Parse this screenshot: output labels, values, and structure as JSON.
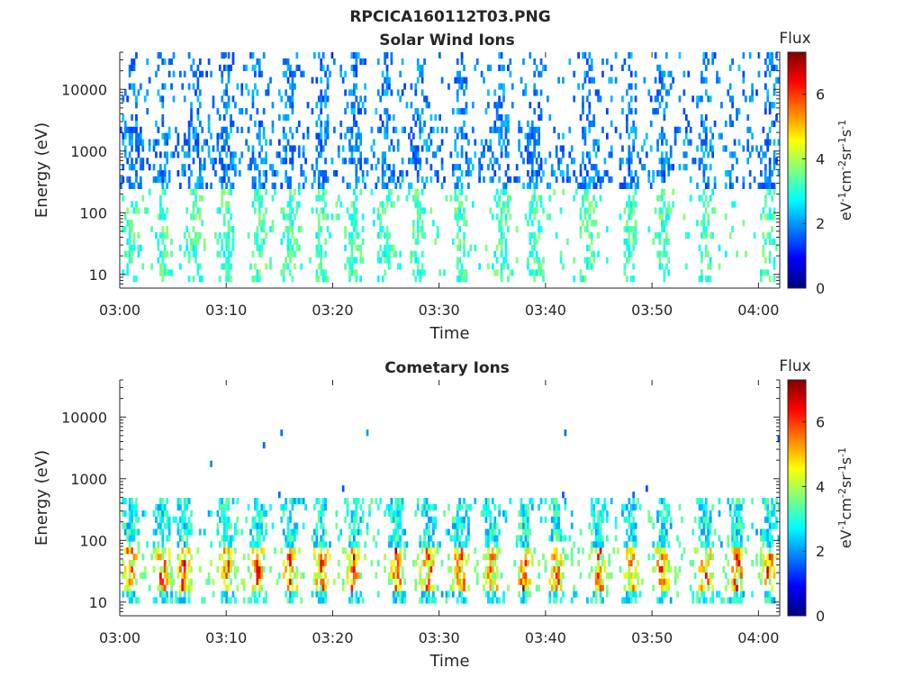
{
  "figure_title": "RPCICA160112T03.PNG",
  "colors": {
    "colormap": [
      "#00007f",
      "#0000ff",
      "#007fff",
      "#00ffff",
      "#7fff7f",
      "#ffff00",
      "#ff7f00",
      "#ff0000",
      "#7f0000"
    ],
    "axis": "#262626",
    "background": "#ffffff"
  },
  "chart_data": [
    {
      "type": "heatmap",
      "title": "Solar Wind Ions",
      "xlabel": "Time",
      "ylabel": "Energy (eV)",
      "x_ticks": [
        "03:00",
        "03:10",
        "03:20",
        "03:30",
        "03:40",
        "03:50",
        "04:00"
      ],
      "x_range": [
        "03:00",
        "04:02"
      ],
      "y_scale": "log",
      "y_ticks": [
        10,
        100,
        1000,
        10000
      ],
      "y_tick_labels": [
        "10",
        "100",
        "1000",
        "10000"
      ],
      "y_range": [
        6,
        40000
      ],
      "colorbar": {
        "label": "Flux",
        "units": "eV-1cm-2sr-1s-1",
        "range": [
          0,
          7.3
        ],
        "ticks": [
          "0",
          "2",
          "4",
          "6"
        ]
      },
      "pattern": {
        "scatter_energy_range_eV": [
          250,
          40000
        ],
        "scatter_flux": [
          1.3,
          2.4
        ],
        "core_energy_range_eV": [
          8,
          250
        ],
        "core_flux": [
          2.6,
          3.8
        ],
        "enhanced_columns": [
          "03:01",
          "03:04",
          "03:07",
          "03:10",
          "03:13",
          "03:16",
          "03:19",
          "03:22",
          "03:25",
          "03:28",
          "03:32",
          "03:36",
          "03:39",
          "03:44",
          "03:48",
          "03:51",
          "03:55",
          "04:01"
        ]
      }
    },
    {
      "type": "heatmap",
      "title": "Cometary Ions",
      "xlabel": "Time",
      "ylabel": "Energy (eV)",
      "x_ticks": [
        "03:00",
        "03:10",
        "03:20",
        "03:30",
        "03:40",
        "03:50",
        "04:00"
      ],
      "x_range": [
        "03:00",
        "04:02"
      ],
      "y_scale": "log",
      "y_ticks": [
        10,
        100,
        1000,
        10000
      ],
      "y_tick_labels": [
        "10",
        "100",
        "1000",
        "10000"
      ],
      "y_range": [
        6,
        40000
      ],
      "colorbar": {
        "label": "Flux",
        "units": "eV-1cm-2sr-1s-1",
        "range": [
          0,
          7.3
        ],
        "ticks": [
          "0",
          "2",
          "4",
          "6"
        ]
      },
      "pattern": {
        "band_energy_range_eV": [
          10,
          500
        ],
        "band_flux": [
          2.0,
          6.8
        ],
        "peak_flux_energy_eV": [
          15,
          80
        ],
        "enhanced_columns": [
          "03:01",
          "03:04",
          "03:06",
          "03:10",
          "03:13",
          "03:16",
          "03:19",
          "03:22",
          "03:26",
          "03:29",
          "03:32",
          "03:35",
          "03:38",
          "03:41",
          "03:45",
          "03:48",
          "03:51",
          "03:55",
          "03:58",
          "04:01"
        ],
        "sparse_high_energy_counts": true
      }
    }
  ]
}
